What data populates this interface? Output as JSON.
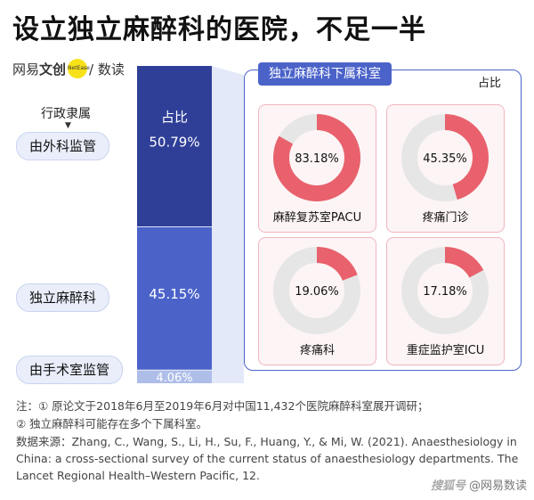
{
  "title": "设立独立麻醉科的医院，不足一半",
  "brand": {
    "left": "网易",
    "mid": "文创",
    "dot": "NetEase",
    "right": "/ 数读"
  },
  "stack_labels": {
    "header": "行政隶属",
    "arrow": "▼",
    "col_header": "占比"
  },
  "panel_title": "独立麻醉科下属科室",
  "legend_label": "占比",
  "notes": [
    "注：① 原论文于2018年6月至2019年6月对中国11,432个医院麻醉科室展开调研；",
    "② 独立麻醉科可能存在多个下属科室。"
  ],
  "source": "数据来源：Zhang, C., Wang, S., Li, H., Su, F., Huang, Y., & Mi, W. (2021). Anaesthesiology in China: a cross-sectional survey of the current status of anaesthesiology departments. The Lancet Regional Health–Western Pacific, 12.",
  "watermark": {
    "a": "搜狐号",
    "b": "@网易数读"
  },
  "colors": {
    "dark_blue": "#2f3f98",
    "mid_blue": "#4b63c9",
    "light_blue": "#aebee9",
    "donut_red": "#e8616c",
    "donut_grey": "#e6e6e6"
  },
  "chart_data": [
    {
      "type": "bar",
      "stacked": true,
      "categories": [
        "由外科监管",
        "独立麻醉科",
        "由手术室监管"
      ],
      "values": [
        50.79,
        45.15,
        4.06
      ],
      "value_labels": [
        "50.79%",
        "45.15%",
        "4.06%"
      ],
      "unit": "%"
    },
    {
      "type": "pie",
      "donut": true,
      "title": "独立麻醉科下属科室",
      "categories": [
        "麻醉复苏室PACU",
        "疼痛门诊",
        "疼痛科",
        "重症监护室ICU"
      ],
      "values": [
        83.18,
        45.35,
        19.06,
        17.18
      ],
      "value_labels": [
        "83.18%",
        "45.35%",
        "19.06%",
        "17.18%"
      ],
      "unit": "%"
    }
  ]
}
